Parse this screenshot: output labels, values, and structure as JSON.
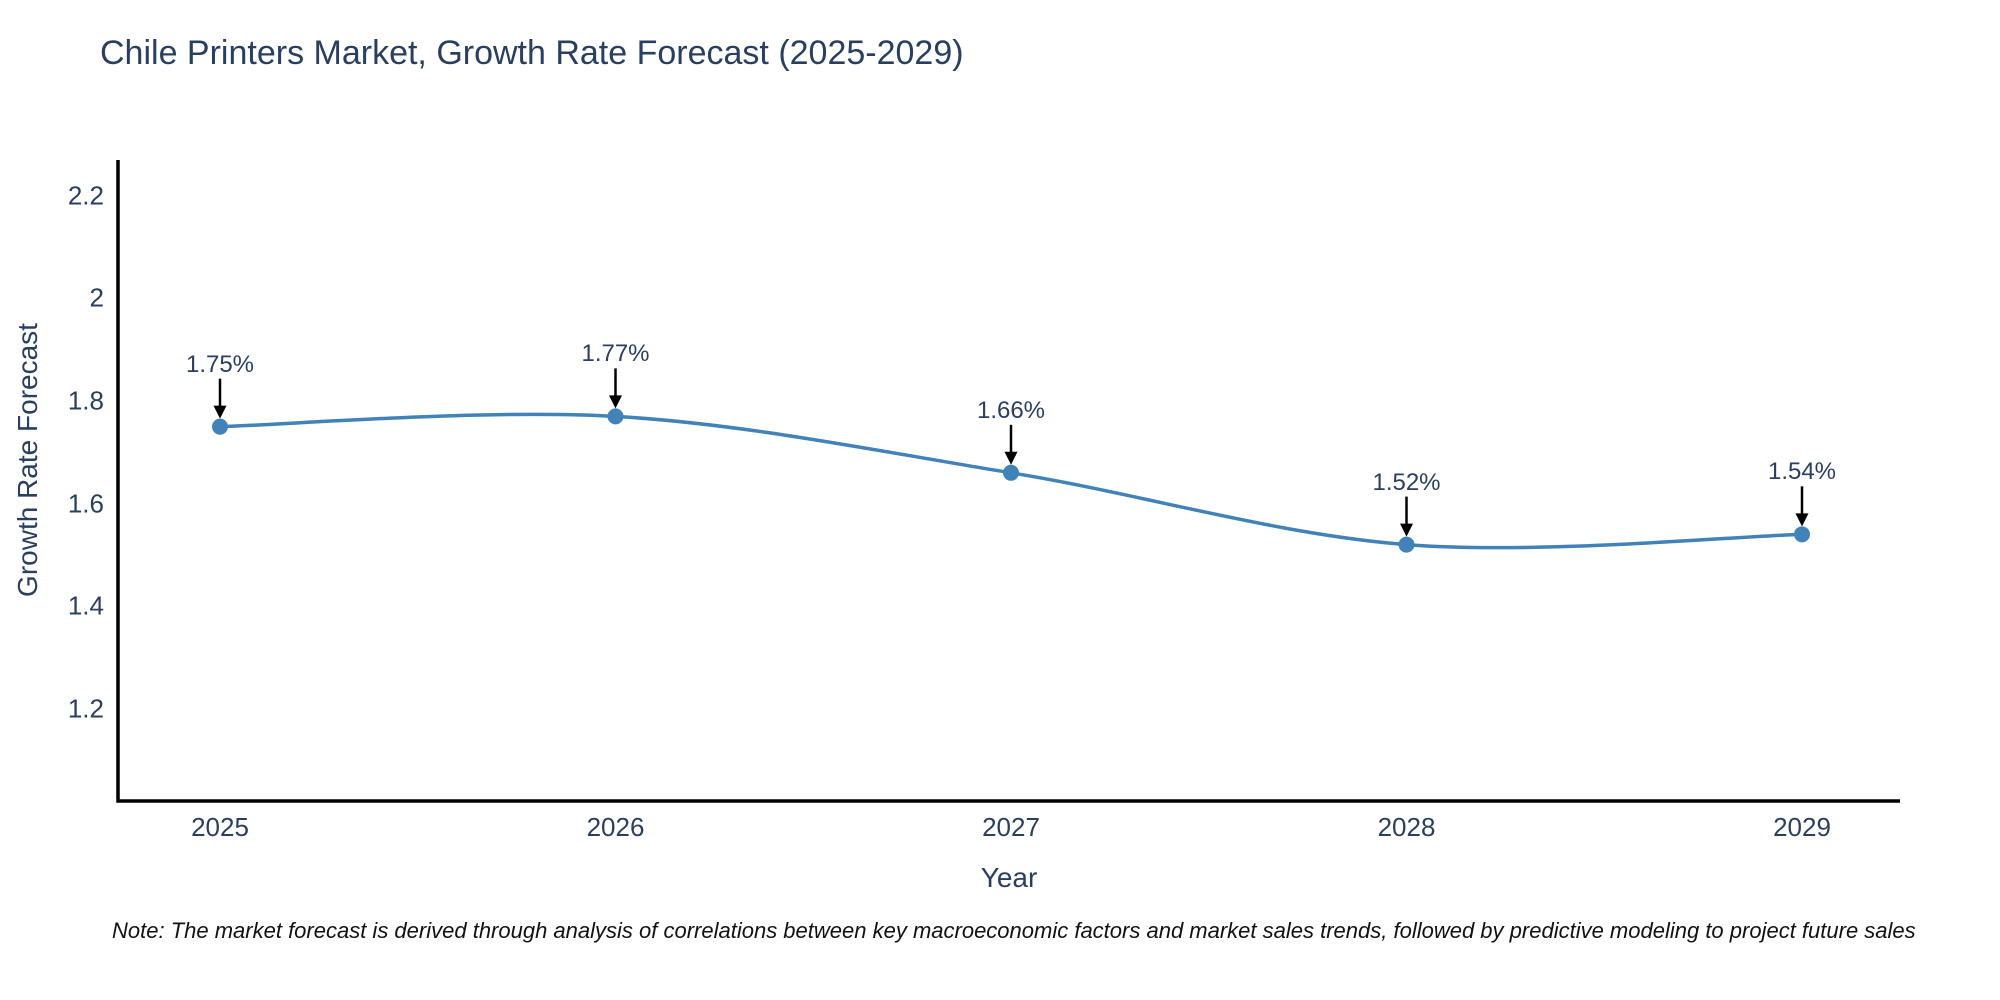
{
  "chart_data": {
    "type": "line",
    "title": "Chile Printers Market, Growth Rate Forecast (2025-2029)",
    "x": [
      2025,
      2026,
      2027,
      2028,
      2029
    ],
    "y": [
      1.75,
      1.77,
      1.66,
      1.52,
      1.54
    ],
    "point_labels": [
      "1.75%",
      "1.77%",
      "1.66%",
      "1.52%",
      "1.54%"
    ],
    "xtick_labels": [
      "2025",
      "2026",
      "2027",
      "2028",
      "2029"
    ],
    "yticks": [
      2.2,
      2,
      1.8,
      1.6,
      1.4,
      1.2
    ],
    "ytick_labels": [
      "2.2",
      "2",
      "1.8",
      "1.6",
      "1.4",
      "1.2"
    ],
    "xlabel": "Year",
    "ylabel": "Growth Rate Forecast",
    "ylim": [
      1.02,
      2.27
    ],
    "grid": false,
    "legend": false,
    "line_shape": "spline",
    "line_color": "#4182b8",
    "marker_color": "#4182b8",
    "arrow_color": "#000000",
    "axis_color": "#000000",
    "text_color": "#2a3f5f"
  },
  "note": "Note: The market forecast is derived through analysis of correlations between key macroeconomic factors and market sales trends, followed by predictive modeling to project future sales"
}
